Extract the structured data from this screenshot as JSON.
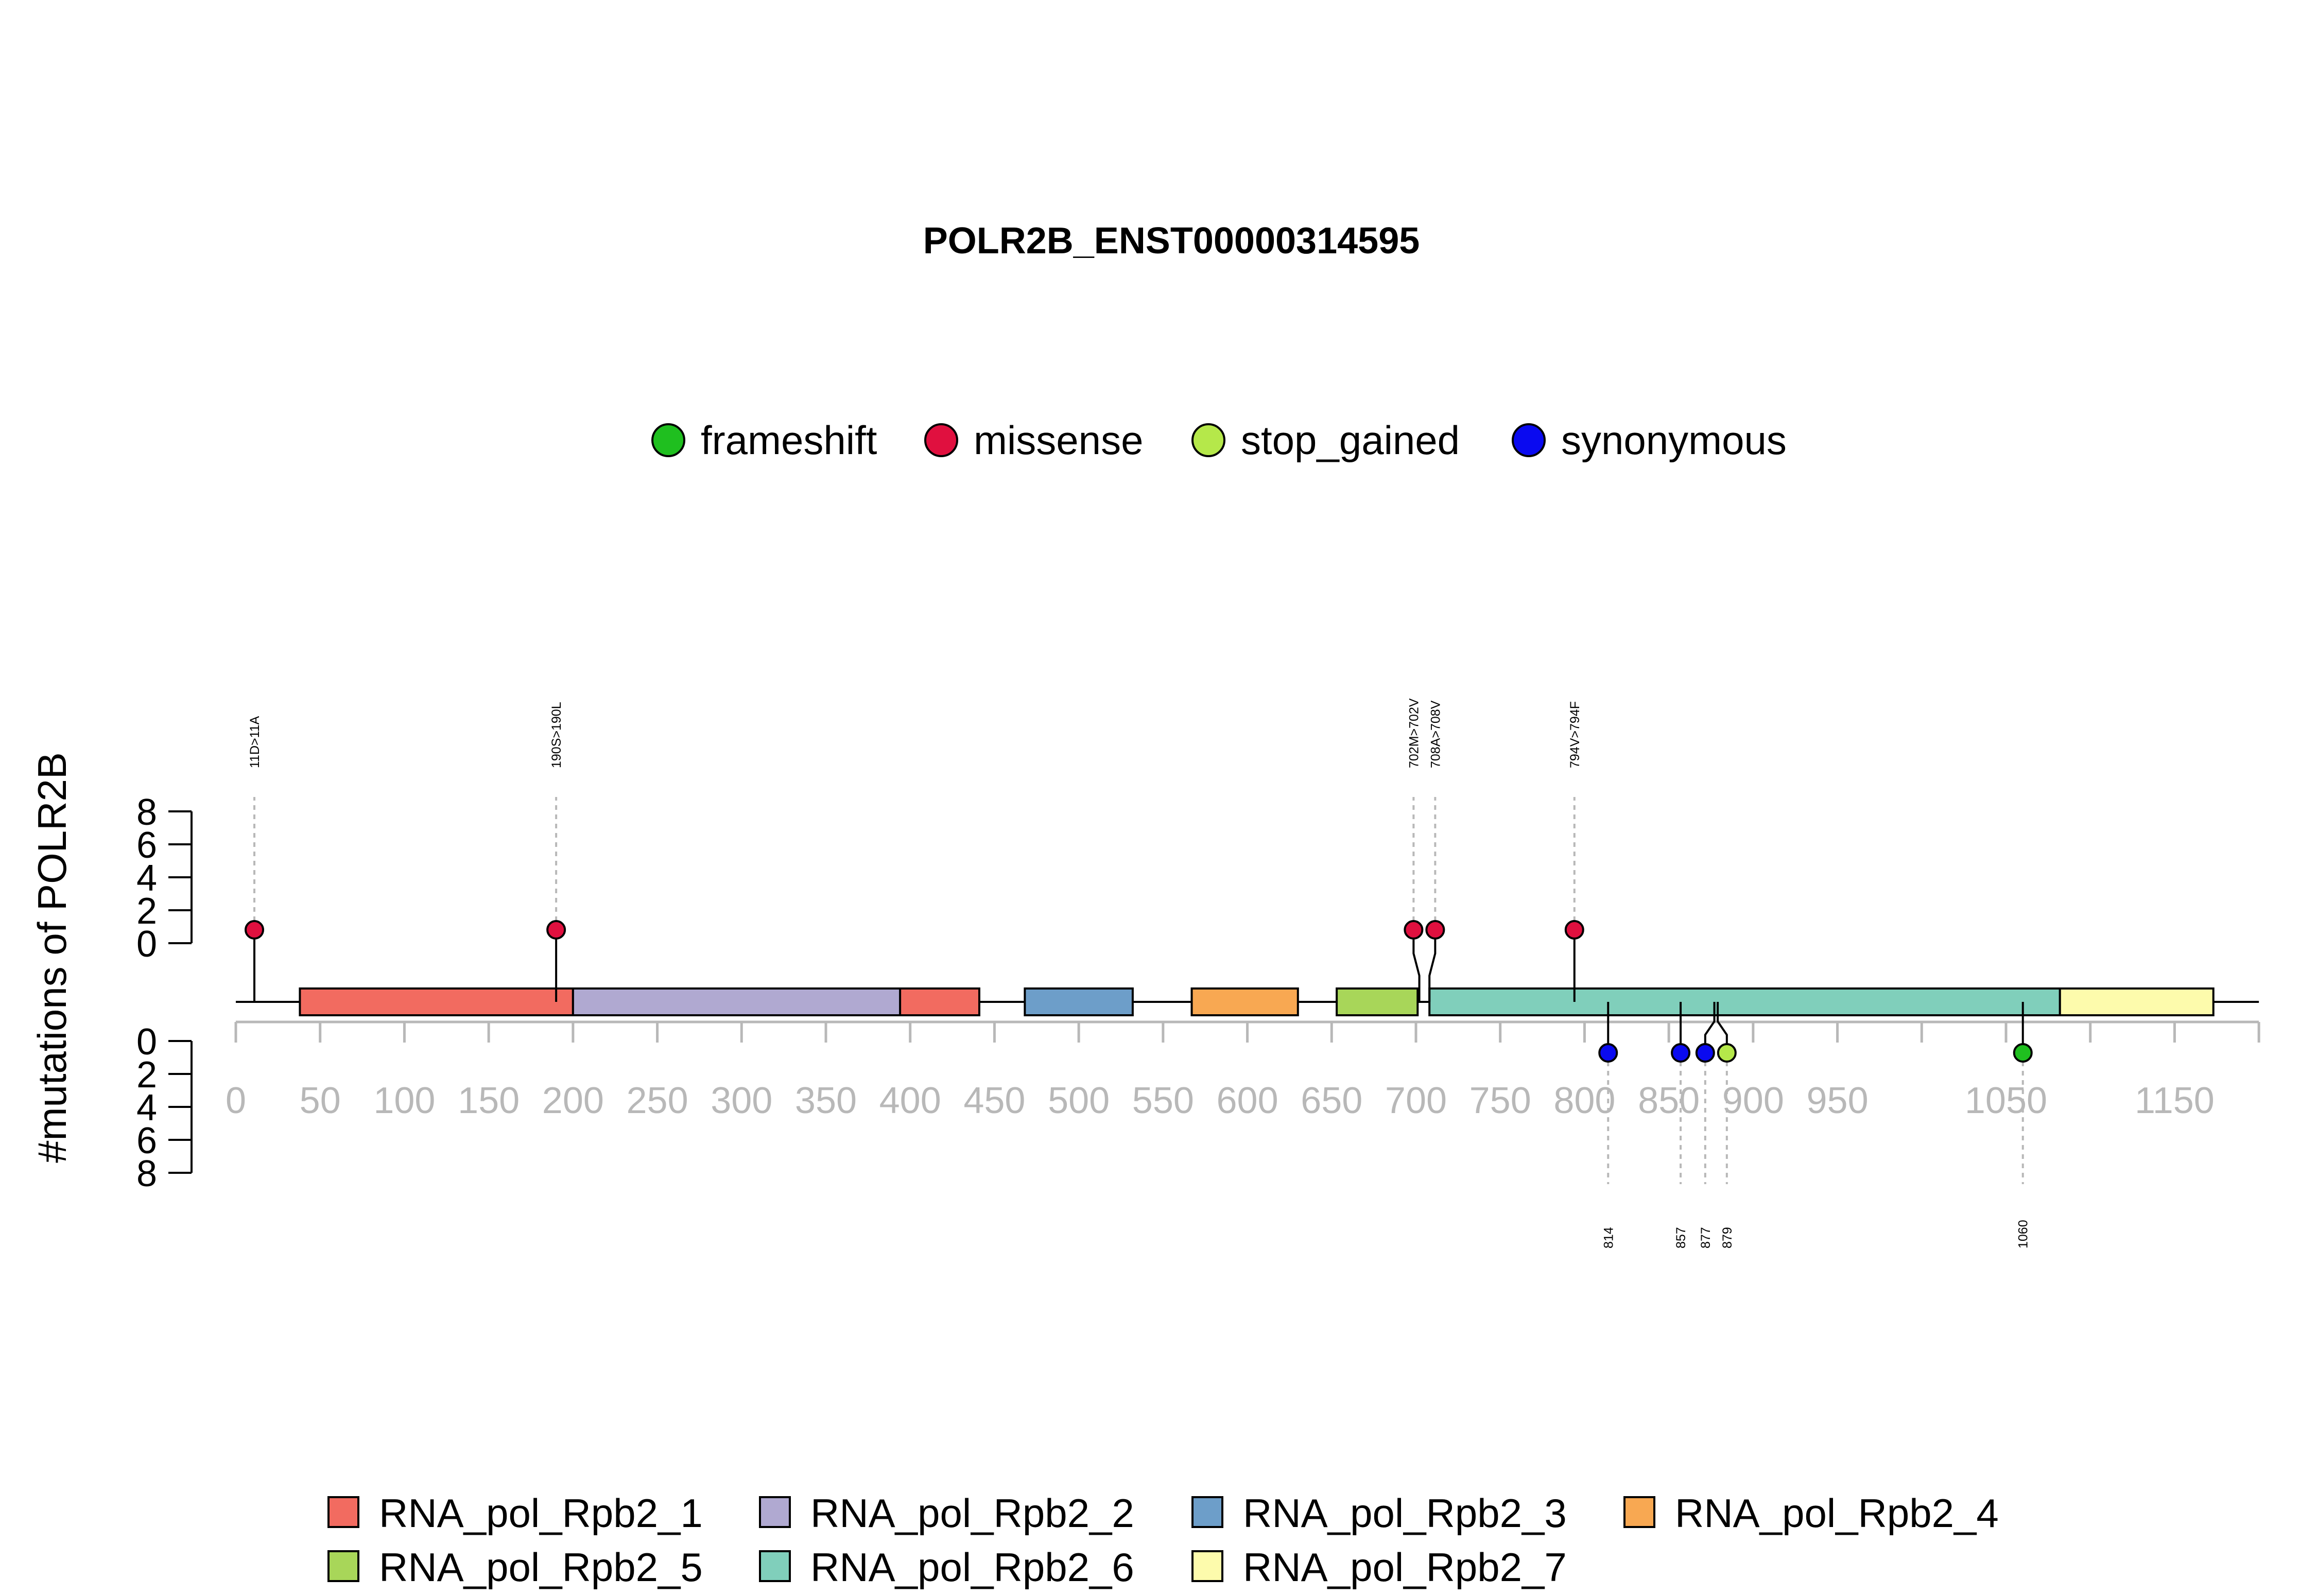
{
  "chart_data": {
    "type": "lollipop",
    "title": "POLR2B_ENST00000314595",
    "ylabel": "#mutations of POLR2B",
    "x_range": [
      0,
      1174
    ],
    "x_ticks": [
      0,
      50,
      100,
      150,
      200,
      250,
      300,
      350,
      400,
      450,
      500,
      550,
      600,
      650,
      700,
      750,
      800,
      850,
      900,
      950,
      1050,
      1150
    ],
    "x_minor_ticks": [
      1000,
      1100,
      1200
    ],
    "y_ticks": [
      0,
      2,
      4,
      6,
      8
    ],
    "mutation_types": [
      {
        "name": "frameshift",
        "color": "#1fbf1f"
      },
      {
        "name": "missense",
        "color": "#e0103f"
      },
      {
        "name": "stop_gained",
        "color": "#b5e84a"
      },
      {
        "name": "synonymous",
        "color": "#0a0af0"
      }
    ],
    "domains": [
      {
        "name": "RNA_pol_Rpb2_1",
        "color": "#f26b60",
        "start": 38,
        "end": 200
      },
      {
        "name": "RNA_pol_Rpb2_1",
        "color": "#f26b60",
        "start": 394,
        "end": 441
      },
      {
        "name": "RNA_pol_Rpb2_2",
        "color": "#b0a9d1",
        "start": 200,
        "end": 394
      },
      {
        "name": "RNA_pol_Rpb2_3",
        "color": "#6d9ec9",
        "start": 468,
        "end": 532
      },
      {
        "name": "RNA_pol_Rpb2_4",
        "color": "#f8a852",
        "start": 567,
        "end": 630
      },
      {
        "name": "RNA_pol_Rpb2_5",
        "color": "#a8d659",
        "start": 653,
        "end": 701
      },
      {
        "name": "RNA_pol_Rpb2_6",
        "color": "#80cfbb",
        "start": 708,
        "end": 1082
      },
      {
        "name": "RNA_pol_Rpb2_7",
        "color": "#fdfbac",
        "start": 1082,
        "end": 1173
      }
    ],
    "domain_legend": [
      {
        "name": "RNA_pol_Rpb2_1",
        "color": "#f26b60"
      },
      {
        "name": "RNA_pol_Rpb2_2",
        "color": "#b0a9d1"
      },
      {
        "name": "RNA_pol_Rpb2_3",
        "color": "#6d9ec9"
      },
      {
        "name": "RNA_pol_Rpb2_4",
        "color": "#f8a852"
      },
      {
        "name": "RNA_pol_Rpb2_5",
        "color": "#a8d659"
      },
      {
        "name": "RNA_pol_Rpb2_6",
        "color": "#80cfbb"
      },
      {
        "name": "RNA_pol_Rpb2_7",
        "color": "#fdfbac"
      }
    ],
    "mutations_top": [
      {
        "pos": 11,
        "label": "11D>11A",
        "type": "missense",
        "count": 1
      },
      {
        "pos": 190,
        "label": "190S>190L",
        "type": "missense",
        "count": 1
      },
      {
        "pos": 702,
        "label": "702M>702V",
        "type": "missense",
        "count": 1
      },
      {
        "pos": 708,
        "label": "708A>708V",
        "type": "missense",
        "count": 1
      },
      {
        "pos": 794,
        "label": "794V>794F",
        "type": "missense",
        "count": 1
      }
    ],
    "mutations_bottom": [
      {
        "pos": 814,
        "label": "814",
        "type": "synonymous",
        "count": 1
      },
      {
        "pos": 857,
        "label": "857",
        "type": "synonymous",
        "count": 1
      },
      {
        "pos": 877,
        "label": "877",
        "type": "synonymous",
        "count": 1
      },
      {
        "pos": 879,
        "label": "879",
        "type": "stop_gained",
        "count": 1
      },
      {
        "pos": 1060,
        "label": "1060",
        "type": "frameshift",
        "count": 1
      }
    ]
  }
}
